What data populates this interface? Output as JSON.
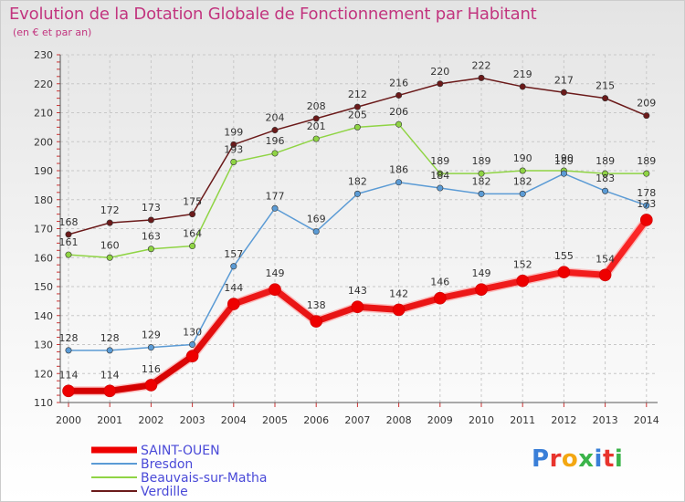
{
  "header": {
    "title": "Evolution de la Dotation Globale de Fonctionnement par Habitant",
    "subtitle": "(en € et par an)"
  },
  "logo": {
    "text": "Proxiti"
  },
  "chart_data": {
    "type": "line",
    "title": "Evolution de la Dotation Globale de Fonctionnement par Habitant",
    "subtitle": "(en € et par an)",
    "xlabel": "",
    "ylabel": "",
    "ylim": [
      110,
      230
    ],
    "yticks": [
      110,
      120,
      130,
      140,
      150,
      160,
      170,
      180,
      190,
      200,
      210,
      220,
      230
    ],
    "grid": true,
    "legend_position": "bottom-left",
    "x": [
      "2000",
      "2001",
      "2002",
      "2003",
      "2004",
      "2005",
      "2006",
      "2007",
      "2008",
      "2009",
      "2010",
      "2011",
      "2012",
      "2013",
      "2014"
    ],
    "series": [
      {
        "name": "Verdille",
        "color": "#6b1a1a",
        "values": [
          168,
          172,
          173,
          175,
          199,
          204,
          208,
          212,
          216,
          220,
          222,
          219,
          217,
          215,
          209
        ]
      },
      {
        "name": "Beauvais-sur-Matha",
        "color": "#8fd444",
        "values": [
          161,
          160,
          163,
          164,
          193,
          196,
          201,
          205,
          206,
          189,
          189,
          190,
          190,
          189,
          189
        ]
      },
      {
        "name": "Bresdon",
        "color": "#5b9bd5",
        "values": [
          128,
          128,
          129,
          130,
          157,
          177,
          169,
          182,
          186,
          184,
          182,
          182,
          189,
          183,
          178
        ]
      },
      {
        "name": "SAINT-OUEN",
        "color": "#ff0000",
        "values": [
          114,
          114,
          116,
          126,
          144,
          149,
          138,
          143,
          142,
          146,
          149,
          152,
          155,
          154,
          173
        ]
      }
    ],
    "data_labels": {
      "Verdille": [
        "168",
        "172",
        "173",
        "175",
        "199",
        "204",
        "208",
        "212",
        "216",
        "220",
        "222",
        "219",
        "217",
        "215",
        "209"
      ],
      "Beauvais-sur-Matha": [
        "161",
        "160",
        "163",
        "164",
        "193",
        "196",
        "201",
        "205",
        "206",
        "189",
        "189",
        "190",
        "190",
        "189",
        "189"
      ],
      "Bresdon": [
        "128",
        "128",
        "129",
        "130",
        "157",
        "177",
        "169",
        "182",
        "186",
        "184",
        "182",
        "182",
        "189",
        "183",
        "178"
      ],
      "SAINT-OUEN": [
        "114",
        "114",
        "116",
        "",
        "144",
        "149",
        "138",
        "143",
        "142",
        "146",
        "149",
        "152",
        "155",
        "154",
        "173"
      ]
    },
    "legend": [
      "SAINT-OUEN",
      "Bresdon",
      "Beauvais-sur-Matha",
      "Verdille"
    ]
  }
}
